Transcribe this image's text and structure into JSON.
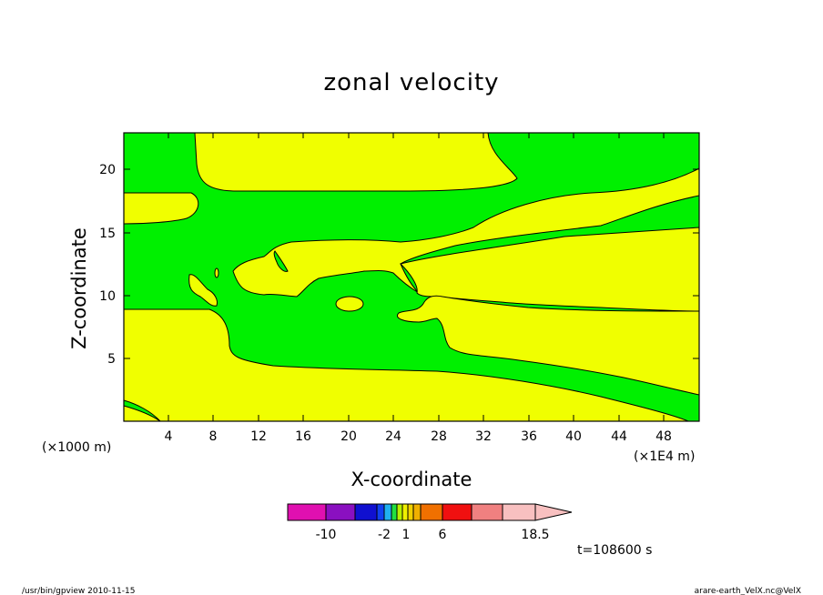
{
  "chart_data": {
    "type": "heatmap",
    "title": "zonal velocity",
    "xlabel": "X-coordinate",
    "ylabel": "Z-coordinate",
    "x_unit_left": "(×1000 m)",
    "x_unit_right": "(×1E4 m)",
    "xlim": [
      0,
      51
    ],
    "ylim": [
      0,
      23
    ],
    "xticks": [
      "4",
      "8",
      "12",
      "16",
      "20",
      "24",
      "28",
      "32",
      "36",
      "40",
      "44",
      "48"
    ],
    "yticks": [
      "5",
      "10",
      "15",
      "20"
    ],
    "colorbar": {
      "colors": [
        "#e010b0",
        "#8a10c0",
        "#1010d0",
        "#1040f0",
        "#20b0f0",
        "#20e0d0",
        "#20e040",
        "#b8f000",
        "#f0f000",
        "#f0d000",
        "#f0b000",
        "#f07000",
        "#f01010",
        "#f08080",
        "#f8c0c0"
      ],
      "labels": [
        "-10",
        "-2",
        "1",
        "6",
        "18.5"
      ],
      "extend": "max"
    },
    "levels_shown": [
      {
        "name": "green band",
        "color": "#00f000"
      },
      {
        "name": "yellow band",
        "color": "#f0ff00"
      }
    ],
    "time": "t=108600 s"
  },
  "footer": {
    "left": "/usr/bin/gpview   2010-11-15",
    "right": "arare-earth_VelX.nc@VelX"
  }
}
